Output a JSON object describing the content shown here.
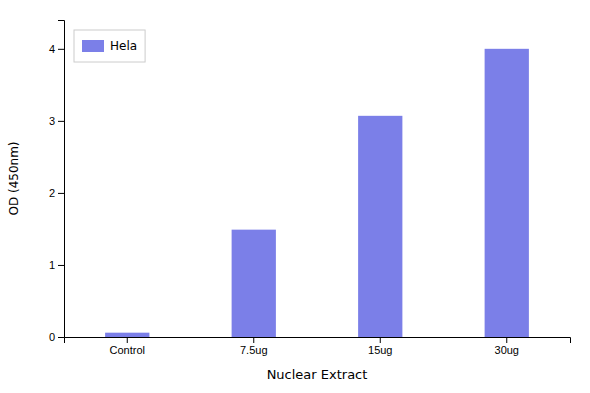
{
  "chart_data": {
    "type": "bar",
    "categories": [
      "Control",
      "7.5ug",
      "15ug",
      "30ug"
    ],
    "series": [
      {
        "name": "Hela",
        "color": "#7b7fe8",
        "values": [
          0.06,
          1.49,
          3.07,
          4.0
        ]
      }
    ],
    "xlabel": "Nuclear Extract",
    "ylabel": "OD (450nm)",
    "ylim": [
      0,
      4.4
    ],
    "yticks": [
      0,
      1,
      2,
      3,
      4
    ],
    "grid": false,
    "legend": "upper left"
  }
}
